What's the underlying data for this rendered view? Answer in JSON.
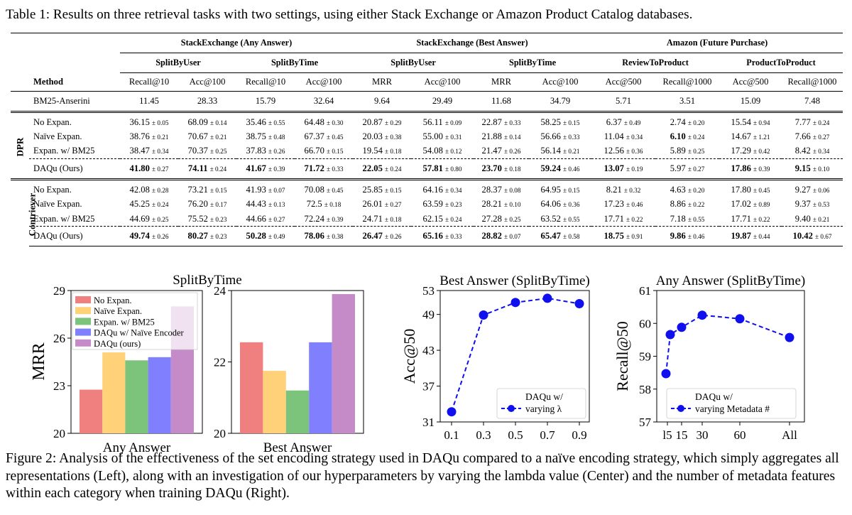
{
  "table_caption": "Table 1: Results on three retrieval tasks with two settings, using either Stack Exchange or Amazon Product Catalog databases.",
  "table": {
    "groups": [
      "StackExchange (Any Answer)",
      "StackExchange (Best Answer)",
      "Amazon (Future Purchase)"
    ],
    "splits": [
      "SplitByUser",
      "SplitByTime",
      "SplitByUser",
      "SplitByTime",
      "ReviewToProduct",
      "ProductToProduct"
    ],
    "method_header": "Method",
    "metrics": [
      "Recall@10",
      "Acc@100",
      "Recall@10",
      "Acc@100",
      "MRR",
      "Acc@100",
      "MRR",
      "Acc@100",
      "Acc@500",
      "Recall@1000",
      "Acc@500",
      "Recall@1000"
    ],
    "bm25": {
      "name": "BM25-Anserini",
      "values": [
        "11.45",
        "28.33",
        "15.79",
        "32.64",
        "9.64",
        "29.49",
        "11.68",
        "34.79",
        "5.71",
        "3.51",
        "15.09",
        "7.48"
      ]
    },
    "dpr_label": "DPR",
    "contriever_label": "Contriever",
    "dpr_rows": [
      {
        "name": "No Expan.",
        "cells": [
          [
            "36.15",
            "± 0.05",
            false
          ],
          [
            "68.09",
            "± 0.14",
            false
          ],
          [
            "35.46",
            "± 0.55",
            false
          ],
          [
            "64.48",
            "± 0.30",
            false
          ],
          [
            "20.87",
            "± 0.29",
            false
          ],
          [
            "56.11",
            "± 0.09",
            false
          ],
          [
            "22.87",
            "± 0.33",
            false
          ],
          [
            "58.25",
            "± 0.15",
            false
          ],
          [
            "6.37",
            "± 0.49",
            false
          ],
          [
            "2.74",
            "± 0.20",
            false
          ],
          [
            "15.54",
            "± 0.94",
            false
          ],
          [
            "7.77",
            "± 0.24",
            false
          ]
        ]
      },
      {
        "name": "Naïve Expan.",
        "cells": [
          [
            "38.76",
            "± 0.21",
            false
          ],
          [
            "70.67",
            "± 0.21",
            false
          ],
          [
            "38.75",
            "± 0.48",
            false
          ],
          [
            "67.37",
            "± 0.45",
            false
          ],
          [
            "20.03",
            "± 0.38",
            false
          ],
          [
            "55.00",
            "± 0.31",
            false
          ],
          [
            "21.88",
            "± 0.14",
            false
          ],
          [
            "56.66",
            "± 0.33",
            false
          ],
          [
            "11.04",
            "± 0.34",
            false
          ],
          [
            "6.10",
            "± 0.24",
            true
          ],
          [
            "14.67",
            "± 1.21",
            false
          ],
          [
            "7.66",
            "± 0.27",
            false
          ]
        ]
      },
      {
        "name": "Expan. w/ BM25",
        "cells": [
          [
            "38.47",
            "± 0.34",
            false
          ],
          [
            "70.37",
            "± 0.25",
            false
          ],
          [
            "37.83",
            "± 0.26",
            false
          ],
          [
            "66.70",
            "± 0.15",
            false
          ],
          [
            "19.54",
            "± 0.18",
            false
          ],
          [
            "54.08",
            "± 0.12",
            false
          ],
          [
            "21.47",
            "± 0.26",
            false
          ],
          [
            "56.14",
            "± 0.21",
            false
          ],
          [
            "12.56",
            "± 0.36",
            false
          ],
          [
            "5.89",
            "± 0.25",
            false
          ],
          [
            "17.29",
            "± 0.42",
            false
          ],
          [
            "8.42",
            "± 0.34",
            false
          ]
        ]
      }
    ],
    "dpr_ours": {
      "name": "DAQu (Ours)",
      "cells": [
        [
          "41.80",
          "± 0.27",
          true
        ],
        [
          "74.11",
          "± 0.24",
          true
        ],
        [
          "41.67",
          "± 0.39",
          true
        ],
        [
          "71.72",
          "± 0.33",
          true
        ],
        [
          "22.05",
          "± 0.24",
          true
        ],
        [
          "57.81",
          "± 0.80",
          true
        ],
        [
          "23.70",
          "± 0.18",
          true
        ],
        [
          "59.24",
          "± 0.46",
          true
        ],
        [
          "13.07",
          "± 0.19",
          true
        ],
        [
          "5.97",
          "± 0.27",
          false
        ],
        [
          "17.86",
          "± 0.39",
          true
        ],
        [
          "9.15",
          "± 0.10",
          true
        ]
      ]
    },
    "con_rows": [
      {
        "name": "No Expan.",
        "cells": [
          [
            "42.08",
            "± 0.28",
            false
          ],
          [
            "73.21",
            "± 0.15",
            false
          ],
          [
            "41.93",
            "± 0.07",
            false
          ],
          [
            "70.08",
            "± 0.45",
            false
          ],
          [
            "25.85",
            "± 0.15",
            false
          ],
          [
            "64.16",
            "± 0.34",
            false
          ],
          [
            "28.37",
            "± 0.08",
            false
          ],
          [
            "64.95",
            "± 0.15",
            false
          ],
          [
            "8.21",
            "± 0.32",
            false
          ],
          [
            "4.63",
            "± 0.20",
            false
          ],
          [
            "17.80",
            "± 0.45",
            false
          ],
          [
            "9.27",
            "± 0.06",
            false
          ]
        ]
      },
      {
        "name": "Naïve Expan.",
        "cells": [
          [
            "45.25",
            "± 0.24",
            false
          ],
          [
            "76.20",
            "± 0.17",
            false
          ],
          [
            "44.43",
            "± 0.13",
            false
          ],
          [
            "72.5",
            "± 0.18",
            false
          ],
          [
            "26.01",
            "± 0.27",
            false
          ],
          [
            "63.59",
            "± 0.23",
            false
          ],
          [
            "28.21",
            "± 0.10",
            false
          ],
          [
            "64.06",
            "± 0.36",
            false
          ],
          [
            "17.23",
            "± 0.46",
            false
          ],
          [
            "8.86",
            "± 0.22",
            false
          ],
          [
            "17.02",
            "± 0.89",
            false
          ],
          [
            "9.37",
            "± 0.53",
            false
          ]
        ]
      },
      {
        "name": "Expan. w/ BM25",
        "cells": [
          [
            "44.69",
            "± 0.25",
            false
          ],
          [
            "75.52",
            "± 0.23",
            false
          ],
          [
            "44.66",
            "± 0.27",
            false
          ],
          [
            "72.24",
            "± 0.39",
            false
          ],
          [
            "24.71",
            "± 0.18",
            false
          ],
          [
            "62.15",
            "± 0.24",
            false
          ],
          [
            "27.28",
            "± 0.25",
            false
          ],
          [
            "63.52",
            "± 0.55",
            false
          ],
          [
            "17.71",
            "± 0.22",
            false
          ],
          [
            "7.18",
            "± 0.55",
            false
          ],
          [
            "17.71",
            "± 0.22",
            false
          ],
          [
            "9.40",
            "± 0.21",
            false
          ]
        ]
      }
    ],
    "con_ours": {
      "name": "DAQu (Ours)",
      "cells": [
        [
          "49.74",
          "± 0.26",
          true
        ],
        [
          "80.27",
          "± 0.23",
          true
        ],
        [
          "50.28",
          "± 0.49",
          true
        ],
        [
          "78.06",
          "± 0.38",
          true
        ],
        [
          "26.47",
          "± 0.26",
          true
        ],
        [
          "65.16",
          "± 0.33",
          true
        ],
        [
          "28.82",
          "± 0.07",
          true
        ],
        [
          "65.47",
          "± 0.58",
          true
        ],
        [
          "18.75",
          "± 0.91",
          true
        ],
        [
          "9.86",
          "± 0.46",
          true
        ],
        [
          "19.87",
          "± 0.44",
          true
        ],
        [
          "10.42",
          "± 0.67",
          true
        ]
      ]
    }
  },
  "chart_data": [
    {
      "type": "bar",
      "title": "SplitByTime",
      "xlabel": "Any Answer",
      "ylabel": "MRR",
      "ylim": [
        20,
        29
      ],
      "yticks": [
        "20",
        "23",
        "26",
        "29"
      ],
      "legend": "top-left",
      "series": [
        {
          "name": "No Expan.",
          "color": "#f08080",
          "value": 22.75
        },
        {
          "name": "Naïve Expan.",
          "color": "#ffd27a",
          "value": 25.1
        },
        {
          "name": "Expan. w/ BM25",
          "color": "#7cc47c",
          "value": 24.6
        },
        {
          "name": "DAQu w/ Naïve Encoder",
          "color": "#8080ff",
          "value": 24.8
        },
        {
          "name": "DAQu (ours)",
          "color": "#c58bc8",
          "value": 28.0
        }
      ]
    },
    {
      "type": "bar",
      "xlabel": "Best Answer",
      "ylim": [
        20,
        24
      ],
      "yticks": [
        "20",
        "22",
        "24"
      ],
      "values": [
        22.55,
        21.75,
        21.2,
        22.55,
        23.9
      ]
    },
    {
      "type": "line",
      "title": "Best Answer (SplitByTime)",
      "xlabel": "",
      "ylabel": "Acc@50",
      "x": [
        "0.1",
        "0.3",
        "0.5",
        "0.7",
        "0.9"
      ],
      "values": [
        32.7,
        48.9,
        51.0,
        51.7,
        50.8
      ],
      "ylim": [
        31,
        53
      ],
      "yticks": [
        "31",
        "37",
        "43",
        "49",
        "53"
      ],
      "legend_line1": "DAQu w/",
      "legend_line2": "varying λ",
      "legend": "bottom-right",
      "color": "#1010ee"
    },
    {
      "type": "line",
      "title": "Any Answer (SplitByTime)",
      "xlabel": "",
      "ylabel": "Recall@50",
      "x": [
        "1",
        "5",
        "15",
        "30",
        "60",
        "All"
      ],
      "xticks": [
        "l5",
        "15",
        "30",
        "60",
        "All"
      ],
      "values": [
        58.47,
        59.66,
        59.88,
        60.25,
        60.14,
        59.57
      ],
      "ylim": [
        57,
        61
      ],
      "yticks": [
        "57",
        "58",
        "59",
        "60",
        "61"
      ],
      "legend_line1": "DAQu w/",
      "legend_line2": "varying Metadata #",
      "legend": "bottom-center",
      "color": "#1010ee"
    }
  ],
  "figure_caption": "Figure 2: Analysis of the effectiveness of the set encoding strategy used in DAQu compared to a naïve encoding strategy, which simply aggregates all representations (Left), along with an investigation of our hyperparameters by varying the lambda value (Center) and the number of metadata features within each category when training DAQu (Right)."
}
